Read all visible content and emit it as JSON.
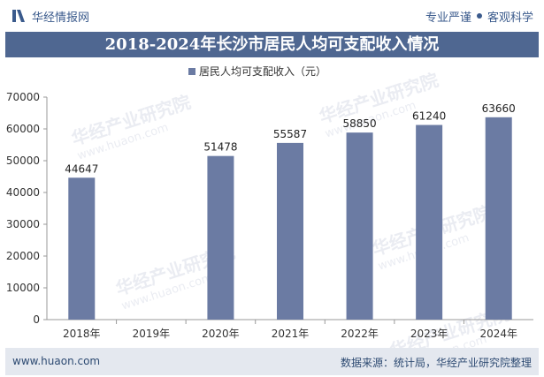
{
  "header": {
    "brand": "华经情报网",
    "tagline_left": "专业严谨",
    "tagline_right": "客观科学"
  },
  "title": "2018-2024年长沙市居民人均可支配收入情况",
  "chart_data": {
    "type": "bar",
    "categories": [
      "2018年",
      "2019年",
      "2020年",
      "2021年",
      "2022年",
      "2023年",
      "2024年"
    ],
    "series": [
      {
        "name": "居民人均可支配收入（元）",
        "values": [
          44647,
          null,
          51478,
          55587,
          58850,
          61240,
          63660
        ],
        "labels": [
          "44647",
          "",
          "51478",
          "55587",
          "58850",
          "61240",
          "63660"
        ]
      }
    ],
    "yticks": [
      "0",
      "10000",
      "20000",
      "30000",
      "40000",
      "50000",
      "60000",
      "70000"
    ],
    "ylim": [
      0,
      70000
    ],
    "legend": "top-center",
    "grid": false,
    "bar_color": "#6b7ba3"
  },
  "watermark": {
    "text": "华经产业研究院",
    "url": "www.huaon.com"
  },
  "footer": {
    "website": "www.huaon.com",
    "source": "数据来源：统计局，华经产业研究院整理"
  }
}
